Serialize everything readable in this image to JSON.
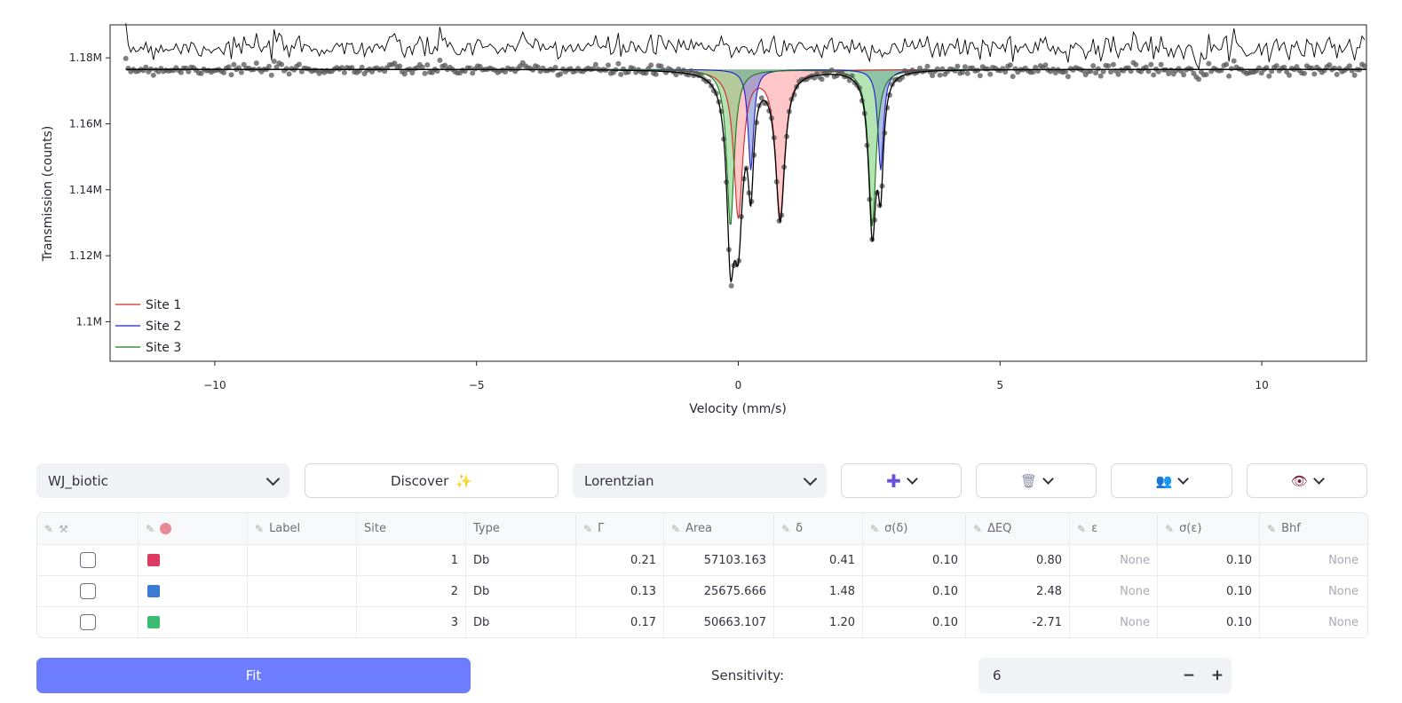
{
  "chart_data": {
    "type": "line",
    "xlabel": "Velocity (mm/s)",
    "ylabel": "Transmission (counts)",
    "xlim": [
      -12,
      12
    ],
    "ylim": [
      1.088,
      1.19
    ],
    "x_ticks": [
      -10,
      -5,
      0,
      5,
      10
    ],
    "x_tick_labels": [
      "−10",
      "−5",
      "0",
      "5",
      "10"
    ],
    "y_ticks": [
      1.1,
      1.12,
      1.14,
      1.16,
      1.18
    ],
    "y_tick_labels": [
      "1.1M",
      "1.12M",
      "1.14M",
      "1.16M",
      "1.18M"
    ],
    "baseline": 1.1765,
    "legend_position": "bottom-left",
    "grid": false,
    "series": [
      {
        "name": "Site 1",
        "color": "#d62728",
        "fill": "#ff9999",
        "peaks": [
          {
            "center": 0.0,
            "depth": 0.0445,
            "width": 0.21
          },
          {
            "center": 0.8,
            "depth": 0.0445,
            "width": 0.21
          }
        ]
      },
      {
        "name": "Site 2",
        "color": "#1f1fc8",
        "fill": "#6b7fcf",
        "peaks": [
          {
            "center": 0.24,
            "depth": 0.0305,
            "width": 0.13
          },
          {
            "center": 2.72,
            "depth": 0.0305,
            "width": 0.13
          }
        ]
      },
      {
        "name": "Site 3",
        "color": "#1a7a1a",
        "fill": "#77cc77",
        "peaks": [
          {
            "center": -0.15,
            "depth": 0.0475,
            "width": 0.17
          },
          {
            "center": 2.56,
            "depth": 0.0475,
            "width": 0.17
          }
        ]
      }
    ],
    "total_fit_color": "#000000",
    "data_points_color": "#555555",
    "residual_color": "#000000"
  },
  "controls": {
    "dataset_select": "WJ_biotic",
    "discover_label": "Discover",
    "discover_icon": "✨",
    "lineshape_select": "Lorentzian",
    "add_icon": "✚",
    "delete_icon": "🗑",
    "group_icon": "👥",
    "view_icon": "👁"
  },
  "table": {
    "headers": [
      "",
      "",
      "Label",
      "Site",
      "Type",
      "Γ",
      "Area",
      "δ",
      "σ(δ)",
      "ΔEQ",
      "ε",
      "σ(ε)",
      "Bhf"
    ],
    "rows": [
      {
        "color": "#dc3a5e",
        "label": "",
        "site": "1",
        "type": "Db",
        "gamma": "0.21",
        "area": "57103.163",
        "delta": "0.41",
        "sigma_delta": "0.10",
        "deq": "0.80",
        "eps": "None",
        "sigma_eps": "0.10",
        "bhf": "None"
      },
      {
        "color": "#3a7bd5",
        "label": "",
        "site": "2",
        "type": "Db",
        "gamma": "0.13",
        "area": "25675.666",
        "delta": "1.48",
        "sigma_delta": "0.10",
        "deq": "2.48",
        "eps": "None",
        "sigma_eps": "0.10",
        "bhf": "None"
      },
      {
        "color": "#3dbb72",
        "label": "",
        "site": "3",
        "type": "Db",
        "gamma": "0.17",
        "area": "50663.107",
        "delta": "1.20",
        "sigma_delta": "0.10",
        "deq": "-2.71",
        "eps": "None",
        "sigma_eps": "0.10",
        "bhf": "None"
      }
    ]
  },
  "fit_label": "Fit",
  "sensitivity": {
    "label": "Sensitivity:",
    "value": "6",
    "minus": "−",
    "plus": "+"
  }
}
